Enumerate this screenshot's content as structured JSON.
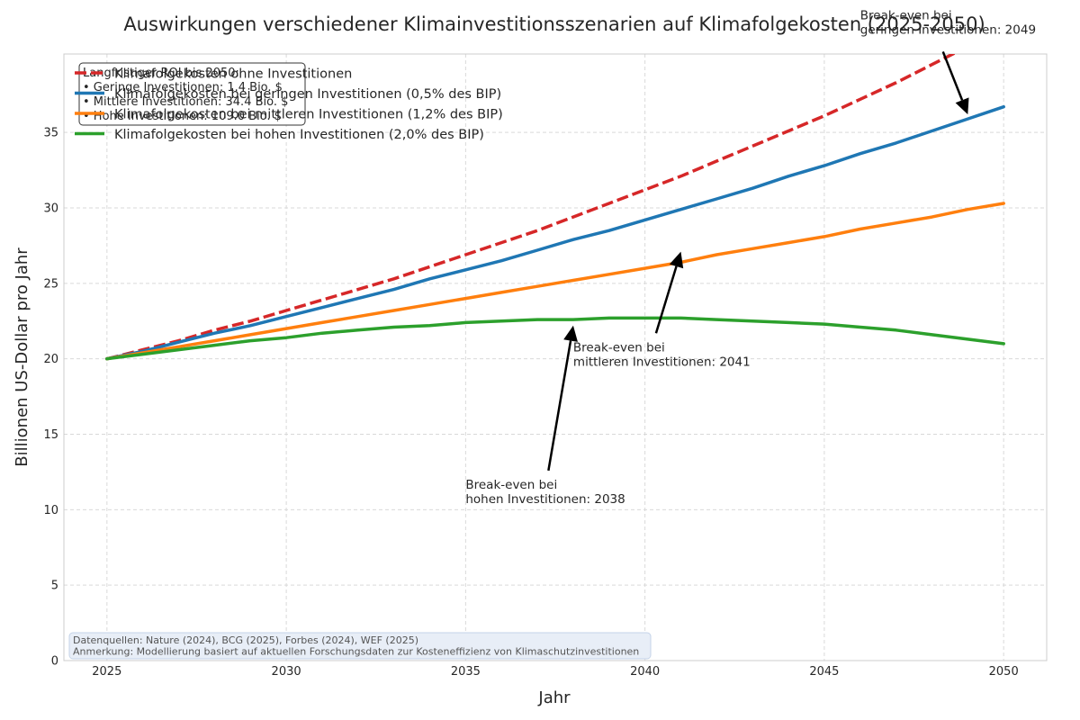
{
  "chart_data": {
    "type": "line",
    "title": "Auswirkungen verschiedener Klimainvestitionsszenarien auf Klimafolgekosten (2025-2050)",
    "xlabel": "Jahr",
    "ylabel": "Billionen US-Dollar pro Jahr",
    "xlim": [
      2023.8,
      2051.2
    ],
    "ylim": [
      0,
      40.2
    ],
    "xticks": [
      2025,
      2030,
      2035,
      2040,
      2045,
      2050
    ],
    "yticks": [
      0,
      5,
      10,
      15,
      20,
      25,
      30,
      35
    ],
    "grid": true,
    "legend_position": "top-left",
    "x": [
      2025,
      2026,
      2027,
      2028,
      2029,
      2030,
      2031,
      2032,
      2033,
      2034,
      2035,
      2036,
      2037,
      2038,
      2039,
      2040,
      2041,
      2042,
      2043,
      2044,
      2045,
      2046,
      2047,
      2048,
      2049,
      2050
    ],
    "series": [
      {
        "name": "Klimafolgekosten ohne Investitionen",
        "color": "#d62728",
        "dash": true,
        "values": [
          20.0,
          20.6,
          21.2,
          21.9,
          22.5,
          23.2,
          23.9,
          24.6,
          25.3,
          26.1,
          26.9,
          27.7,
          28.5,
          29.4,
          30.3,
          31.2,
          32.1,
          33.1,
          34.1,
          35.1,
          36.1,
          37.2,
          38.3,
          39.5,
          40.7,
          41.9
        ]
      },
      {
        "name": "Klimafolgekosten bei geringen Investitionen (0,5% des BIP)",
        "color": "#1f77b4",
        "dash": false,
        "values": [
          20.0,
          20.5,
          21.1,
          21.7,
          22.2,
          22.8,
          23.4,
          24.0,
          24.6,
          25.3,
          25.9,
          26.5,
          27.2,
          27.9,
          28.5,
          29.2,
          29.9,
          30.6,
          31.3,
          32.1,
          32.8,
          33.6,
          34.3,
          35.1,
          35.9,
          36.7
        ]
      },
      {
        "name": "Klimafolgekosten bei mittleren Investitionen (1,2% des BIP)",
        "color": "#ff7f0e",
        "dash": false,
        "values": [
          20.0,
          20.4,
          20.8,
          21.2,
          21.6,
          22.0,
          22.4,
          22.8,
          23.2,
          23.6,
          24.0,
          24.4,
          24.8,
          25.2,
          25.6,
          26.0,
          26.4,
          26.9,
          27.3,
          27.7,
          28.1,
          28.6,
          29.0,
          29.4,
          29.9,
          30.3
        ]
      },
      {
        "name": "Klimafolgekosten bei hohen Investitionen (2,0% des BIP)",
        "color": "#2ca02c",
        "dash": false,
        "values": [
          20.0,
          20.3,
          20.6,
          20.9,
          21.2,
          21.4,
          21.7,
          21.9,
          22.1,
          22.2,
          22.4,
          22.5,
          22.6,
          22.6,
          22.7,
          22.7,
          22.7,
          22.6,
          22.5,
          22.4,
          22.3,
          22.1,
          21.9,
          21.6,
          21.3,
          21.0
        ]
      }
    ],
    "annotations": [
      {
        "lines": [
          "Break-even bei",
          "hohen Investitionen: 2038"
        ],
        "point": [
          2038,
          22.2
        ],
        "text_at": [
          2035,
          11.4
        ]
      },
      {
        "lines": [
          "Break-even bei",
          "mittleren Investitionen: 2041"
        ],
        "point": [
          2041,
          27.1
        ],
        "text_at": [
          2038,
          20.5
        ]
      },
      {
        "lines": [
          "Break-even bei",
          "geringen Investitionen: 2049"
        ],
        "point": [
          2049,
          36.2
        ],
        "text_at": [
          2046,
          42.5
        ]
      }
    ],
    "roi_box": {
      "lines": [
        "Langfristiger ROI bis 2050:",
        "• Geringe Investitionen: 1.4 Bio. $",
        "• Mittlere Investitionen: 34.4 Bio. $",
        "• Hohe Investitionen: 109.0 Bio. $"
      ]
    },
    "source_note": {
      "lines": [
        "Datenquellen: Nature (2024), BCG (2025), Forbes (2024), WEF (2025)",
        "Anmerkung: Modellierung basiert auf aktuellen Forschungsdaten zur Kosteneffizienz von Klimaschutzinvestitionen"
      ]
    }
  }
}
